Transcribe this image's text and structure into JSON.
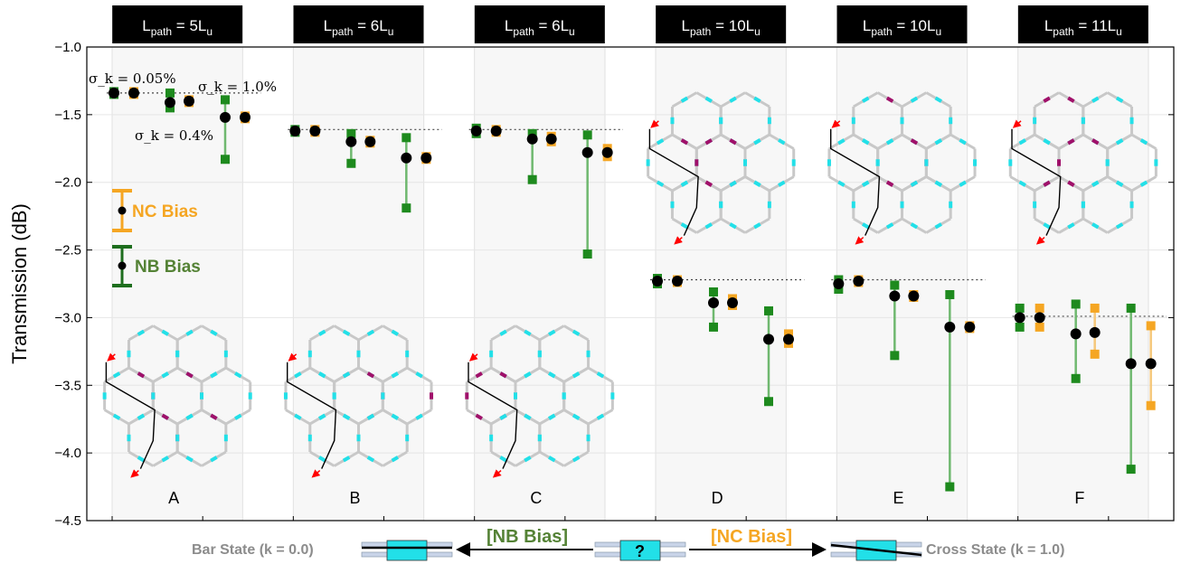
{
  "chart_data": {
    "type": "scatter",
    "ylabel": "Transmission (dB)",
    "ylim": [
      -4.5,
      -1.0
    ],
    "yticks": [
      "−1.0",
      "−1.5",
      "−2.0",
      "−2.5",
      "−3.0",
      "−3.5",
      "−4.0",
      "−4.5"
    ],
    "ytick_values": [
      -1.0,
      -1.5,
      -2.0,
      -2.5,
      -3.0,
      -3.5,
      -4.0,
      -4.5
    ],
    "grid": true,
    "colors": {
      "nb": "#1e8a1e",
      "nb_line": "#6fb86f",
      "nc": "#f5a623",
      "nc_line": "#f5c77a",
      "mean": "#000000",
      "header": "#000000",
      "panel": "#f7f7f7"
    },
    "annotations": {
      "sigma1": "σ_k = 0.05%",
      "sigma2": "σ_k = 1.0%",
      "sigma3": "σ_k = 0.4%"
    },
    "panels": [
      {
        "letter": "A",
        "header_main": "L",
        "header_sub": "path",
        "header_rest": " = 5L",
        "header_sub2": "u",
        "baseline": -1.34,
        "groups": [
          {
            "sigma": "0.05%",
            "nb": {
              "mean": -1.34,
              "min": -1.35,
              "max": -1.33
            },
            "nc": {
              "mean": -1.34,
              "min": -1.35,
              "max": -1.33
            }
          },
          {
            "sigma": "0.4%",
            "nb": {
              "mean": -1.41,
              "min": -1.45,
              "max": -1.34
            },
            "nc": {
              "mean": -1.4,
              "min": -1.41,
              "max": -1.39
            }
          },
          {
            "sigma": "1.0%",
            "nb": {
              "mean": -1.52,
              "min": -1.83,
              "max": -1.39
            },
            "nc": {
              "mean": -1.52,
              "min": -1.53,
              "max": -1.51
            }
          }
        ]
      },
      {
        "letter": "B",
        "header_main": "L",
        "header_sub": "path",
        "header_rest": " = 6L",
        "header_sub2": "u",
        "baseline": -1.61,
        "groups": [
          {
            "sigma": "0.05%",
            "nb": {
              "mean": -1.62,
              "min": -1.63,
              "max": -1.61
            },
            "nc": {
              "mean": -1.62,
              "min": -1.63,
              "max": -1.61
            }
          },
          {
            "sigma": "0.4%",
            "nb": {
              "mean": -1.7,
              "min": -1.86,
              "max": -1.64
            },
            "nc": {
              "mean": -1.7,
              "min": -1.71,
              "max": -1.69
            }
          },
          {
            "sigma": "1.0%",
            "nb": {
              "mean": -1.82,
              "min": -2.19,
              "max": -1.67
            },
            "nc": {
              "mean": -1.82,
              "min": -1.83,
              "max": -1.81
            }
          }
        ]
      },
      {
        "letter": "C",
        "header_main": "L",
        "header_sub": "path",
        "header_rest": " = 6L",
        "header_sub2": "u",
        "baseline": -1.61,
        "groups": [
          {
            "sigma": "0.05%",
            "nb": {
              "mean": -1.62,
              "min": -1.64,
              "max": -1.6
            },
            "nc": {
              "mean": -1.62,
              "min": -1.63,
              "max": -1.61
            }
          },
          {
            "sigma": "0.4%",
            "nb": {
              "mean": -1.68,
              "min": -1.98,
              "max": -1.64
            },
            "nc": {
              "mean": -1.68,
              "min": -1.7,
              "max": -1.66
            }
          },
          {
            "sigma": "1.0%",
            "nb": {
              "mean": -1.78,
              "min": -2.53,
              "max": -1.65
            },
            "nc": {
              "mean": -1.78,
              "min": -1.81,
              "max": -1.75
            }
          }
        ]
      },
      {
        "letter": "D",
        "header_main": "L",
        "header_sub": "path",
        "header_rest": " = 10L",
        "header_sub2": "u",
        "baseline": -2.72,
        "groups": [
          {
            "sigma": "0.05%",
            "nb": {
              "mean": -2.73,
              "min": -2.75,
              "max": -2.71
            },
            "nc": {
              "mean": -2.73,
              "min": -2.74,
              "max": -2.72
            }
          },
          {
            "sigma": "0.4%",
            "nb": {
              "mean": -2.89,
              "min": -3.07,
              "max": -2.81
            },
            "nc": {
              "mean": -2.89,
              "min": -2.91,
              "max": -2.86
            }
          },
          {
            "sigma": "1.0%",
            "nb": {
              "mean": -3.16,
              "min": -3.62,
              "max": -2.95
            },
            "nc": {
              "mean": -3.16,
              "min": -3.19,
              "max": -3.12
            }
          }
        ]
      },
      {
        "letter": "E",
        "header_main": "L",
        "header_sub": "path",
        "header_rest": " = 10L",
        "header_sub2": "u",
        "baseline": -2.72,
        "groups": [
          {
            "sigma": "0.05%",
            "nb": {
              "mean": -2.75,
              "min": -2.79,
              "max": -2.72
            },
            "nc": {
              "mean": -2.73,
              "min": -2.74,
              "max": -2.72
            }
          },
          {
            "sigma": "0.4%",
            "nb": {
              "mean": -2.84,
              "min": -3.28,
              "max": -2.76
            },
            "nc": {
              "mean": -2.84,
              "min": -2.85,
              "max": -2.83
            }
          },
          {
            "sigma": "1.0%",
            "nb": {
              "mean": -3.07,
              "min": -4.25,
              "max": -2.83
            },
            "nc": {
              "mean": -3.07,
              "min": -3.08,
              "max": -3.06
            }
          }
        ]
      },
      {
        "letter": "F",
        "header_main": "L",
        "header_sub": "path",
        "header_rest": " = 11L",
        "header_sub2": "u",
        "baseline": -2.99,
        "groups": [
          {
            "sigma": "0.05%",
            "nb": {
              "mean": -3.0,
              "min": -3.07,
              "max": -2.93
            },
            "nc": {
              "mean": -3.0,
              "min": -3.07,
              "max": -2.93
            }
          },
          {
            "sigma": "0.4%",
            "nb": {
              "mean": -3.12,
              "min": -3.45,
              "max": -2.9
            },
            "nc": {
              "mean": -3.11,
              "min": -3.27,
              "max": -2.93
            }
          },
          {
            "sigma": "1.0%",
            "nb": {
              "mean": -3.34,
              "min": -4.12,
              "max": -2.93
            },
            "nc": {
              "mean": -3.34,
              "min": -3.65,
              "max": -3.06
            }
          }
        ]
      }
    ]
  },
  "legend": {
    "nc": "NC Bias",
    "nb": "NB Bias"
  },
  "bottom": {
    "bar_state": "Bar State (k = 0.0)",
    "nb_bracket": "[NB Bias]",
    "nc_bracket": "[NC Bias]",
    "cross_state": "Cross State (k = 1.0)",
    "qmark": "?"
  }
}
